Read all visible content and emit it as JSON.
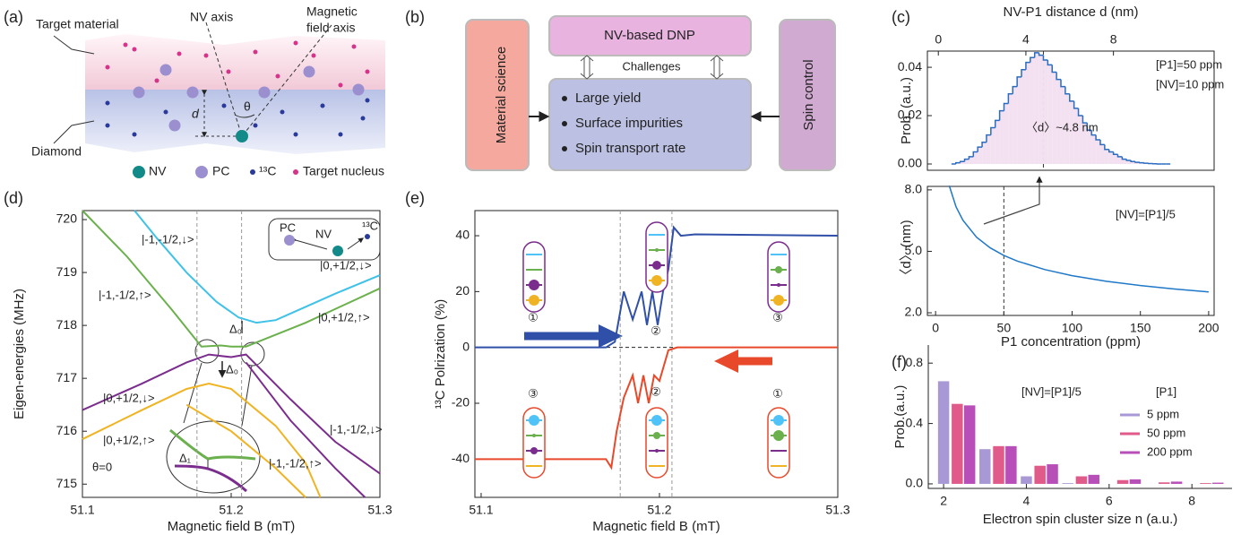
{
  "panel_labels": [
    "(a)",
    "(b)",
    "(c)",
    "(d)",
    "(e)",
    "(f)"
  ],
  "diagram_a": {
    "labels": [
      "Target material",
      "NV axis",
      "Magnetic",
      "field axis",
      "Diamond",
      "d",
      "θ"
    ],
    "legend": [
      "NV",
      "PC",
      "¹³C",
      "Target nucleus"
    ]
  },
  "diagram_b": {
    "left": "Material science",
    "top": "NV-based DNP",
    "link": "Challenges",
    "items": [
      "Large yield",
      "Surface impurities",
      "Spin transport rate"
    ],
    "right": "Spin control"
  },
  "chart_data": [
    {
      "type": "histogram",
      "x_label": "NV-P1 distance d (nm)",
      "y_label": "Prob. (a.u.)",
      "color": "#2b6cc0",
      "bins": [
        0.6,
        0.8,
        1.0,
        1.2,
        1.4,
        1.6,
        1.8,
        2.0,
        2.2,
        2.4,
        2.6,
        2.8,
        3.0,
        3.2,
        3.4,
        3.6,
        3.8,
        4.0,
        4.2,
        4.4,
        4.6,
        4.8,
        5.0,
        5.2,
        5.4,
        5.6,
        5.8,
        6.0,
        6.2,
        6.4,
        6.6,
        6.8,
        7.0,
        7.2,
        7.4,
        7.6,
        7.8,
        8.0,
        8.2,
        8.4,
        8.6,
        8.8,
        9.0,
        9.2,
        9.4,
        9.6,
        9.8,
        10.0,
        10.2,
        10.4,
        10.6
      ],
      "counts": [
        0,
        0.0005,
        0.001,
        0.002,
        0.003,
        0.005,
        0.007,
        0.009,
        0.012,
        0.015,
        0.018,
        0.022,
        0.025,
        0.029,
        0.032,
        0.036,
        0.039,
        0.042,
        0.044,
        0.046,
        0.045,
        0.043,
        0.041,
        0.038,
        0.035,
        0.032,
        0.029,
        0.026,
        0.023,
        0.02,
        0.017,
        0.014,
        0.012,
        0.01,
        0.008,
        0.006,
        0.005,
        0.004,
        0.003,
        0.002,
        0.0015,
        0.001,
        0.0007,
        0.0005,
        0.0003,
        0.0002,
        0.0001,
        0,
        0,
        0
      ],
      "xlim": [
        -0.5,
        12.6
      ],
      "xticks": [
        0,
        4,
        8
      ],
      "ylim": [
        -0.0026,
        0.0467
      ],
      "yticks": [
        {
          "value": 0,
          "label": "0.00"
        },
        {
          "value": 0.02,
          "label": "0.02"
        },
        {
          "value": 0.04,
          "label": "0.04"
        }
      ],
      "vlines": [
        4.8
      ],
      "annotations": [
        "[P1]=50 ppm",
        "[NV]=10 ppm",
        "〈d〉~4.8 nm"
      ]
    },
    {
      "type": "line",
      "x_label": "P1 concentration (ppm)",
      "y_label": "〈d〉(nm)",
      "series": [
        {
          "color": "#1f78c8",
          "x": [
            10,
            15,
            20,
            30,
            40,
            50,
            60,
            80,
            100,
            125,
            150,
            175,
            200
          ],
          "values": [
            8.21,
            7.17,
            6.52,
            5.69,
            5.17,
            4.8,
            4.52,
            4.11,
            3.81,
            3.54,
            3.33,
            3.16,
            3.02
          ]
        }
      ],
      "xlim": [
        -6,
        204
      ],
      "xticks": [
        0,
        50,
        100,
        150,
        200
      ],
      "ylim": [
        1.87,
        8.17
      ],
      "yticks": [
        {
          "value": 2,
          "label": "2.0"
        },
        {
          "value": 5,
          "label": "5.0"
        },
        {
          "value": 8,
          "label": "8.0"
        }
      ],
      "vlines": [
        50
      ],
      "annotations": [
        "[NV]=[P1]/5"
      ]
    },
    {
      "type": "line",
      "x_label": "Magnetic field B (mT)",
      "y_label": "Eigen-energies (MHz)",
      "series": [
        {
          "color": "#3fc1e8",
          "x": [
            51.135,
            51.15,
            51.17,
            51.19,
            51.205,
            51.217,
            51.23,
            51.25,
            51.27,
            51.3
          ],
          "values": [
            720.17,
            719.65,
            719.0,
            718.45,
            718.15,
            718.05,
            718.1,
            718.35,
            718.6,
            718.95
          ]
        },
        {
          "color": "#6ab04c",
          "x": [
            51.1,
            51.13,
            51.16,
            51.18,
            51.193,
            51.2,
            51.21,
            51.25,
            51.3
          ],
          "values": [
            720.17,
            719.3,
            718.3,
            717.6,
            717.62,
            717.6,
            717.6,
            718.05,
            718.7
          ]
        },
        {
          "color": "#7b2d8e",
          "x": [
            51.1,
            51.14,
            51.17,
            51.185,
            51.2,
            51.21,
            51.24,
            51.27,
            51.3
          ],
          "values": [
            716.4,
            716.9,
            717.3,
            717.45,
            717.4,
            717.45,
            716.6,
            715.8,
            715.2
          ]
        },
        {
          "color": "#f0b323",
          "x": [
            51.1,
            51.14,
            51.17,
            51.185,
            51.2,
            51.23,
            51.25,
            51.26
          ],
          "values": [
            715.85,
            716.4,
            716.8,
            716.9,
            716.8,
            716.1,
            715.4,
            714.75
          ]
        },
        {
          "color": "#7b2d8e",
          "x": [
            51.21,
            51.24,
            51.27,
            51.29
          ],
          "values": [
            717.3,
            716.2,
            715.3,
            714.75
          ]
        },
        {
          "color": "#f0b323",
          "x": [
            51.17,
            51.2,
            51.23,
            51.25
          ],
          "values": [
            716.5,
            716.0,
            715.3,
            714.75
          ]
        }
      ],
      "xlim": [
        51.1,
        51.3
      ],
      "xticks": [
        51.1,
        51.2,
        51.3
      ],
      "ylim": [
        714.75,
        720.17
      ],
      "yticks": [
        715,
        716,
        717,
        718,
        719,
        720
      ],
      "vlines": [
        51.177,
        51.207
      ],
      "annotations": [
        "|-1,-1/2,↓>",
        "|-1,-1/2,↑>",
        "|0,+1/2,↓>",
        "|0,+1/2,↑>",
        "|0,+1/2,↓>",
        "|0,+1/2,↑>",
        "|-1,-1/2,↓>",
        "|-1,-1/2,↑>",
        "Δ₀",
        "Δ₀",
        "Δ₁",
        "θ=0",
        "PC",
        "NV",
        "¹³C"
      ]
    },
    {
      "type": "line",
      "x_label": "Magnetic field B (mT)",
      "y_label": "¹³C Polrization (%)",
      "series": [
        {
          "color": "#2f4fa8",
          "x": [
            51.0965,
            51.17,
            51.175,
            51.18,
            51.185,
            51.19,
            51.193,
            51.196,
            51.199,
            51.202,
            51.205,
            51.208,
            51.212,
            51.22,
            51.3
          ],
          "values": [
            0,
            0,
            2,
            20,
            10,
            20,
            8,
            20,
            8,
            20,
            28,
            43,
            40,
            40.5,
            40
          ]
        },
        {
          "color": "#e8492b",
          "x": [
            51.0965,
            51.17,
            51.173,
            51.176,
            51.18,
            51.185,
            51.188,
            51.191,
            51.194,
            51.197,
            51.2,
            51.205,
            51.21,
            51.3
          ],
          "values": [
            -40,
            -40,
            -43,
            -30,
            -18,
            -10,
            -20,
            -10,
            -20,
            -10,
            -12,
            -1,
            0,
            0
          ]
        }
      ],
      "xlim": [
        51.0965,
        51.3
      ],
      "xticks": [
        51.1,
        51.2,
        51.3
      ],
      "ylim": [
        -53.7,
        49
      ],
      "yticks": [
        -40,
        -20,
        0,
        20,
        40
      ],
      "vlines": [
        51.178,
        51.207
      ],
      "hlines": [
        0
      ],
      "annotations": [
        "①",
        "②",
        "③",
        "③",
        "②",
        "①"
      ]
    },
    {
      "type": "bar",
      "x_label": "Electron spin cluster size n (a.u.)",
      "y_label": "Prob.(a.u.)",
      "x": [
        2,
        3,
        4,
        5,
        6,
        7,
        8
      ],
      "series": [
        {
          "name": "5 ppm",
          "color": "#a899d6",
          "values": [
            0.68,
            0.23,
            0.05,
            0.005,
            0,
            0,
            0
          ]
        },
        {
          "name": "50 ppm",
          "color": "#e05a8a",
          "values": [
            0.53,
            0.25,
            0.12,
            0.05,
            0.025,
            0.01,
            0.005
          ]
        },
        {
          "name": "200 ppm",
          "color": "#b84fb8",
          "values": [
            0.52,
            0.25,
            0.13,
            0.06,
            0.03,
            0.015,
            0.008
          ]
        }
      ],
      "xlim": [
        1.63,
        8.97
      ],
      "xticks": [
        2,
        4,
        6,
        8
      ],
      "ylim": [
        -0.03,
        0.92
      ],
      "yticks": [
        {
          "value": 0,
          "label": "0.0"
        },
        {
          "value": 0.4,
          "label": "0.4"
        },
        {
          "value": 0.8,
          "label": "0.8"
        }
      ],
      "legend_title": "[P1]",
      "legend": "upper right",
      "annotations": [
        "[NV]=[P1]/5"
      ]
    }
  ]
}
